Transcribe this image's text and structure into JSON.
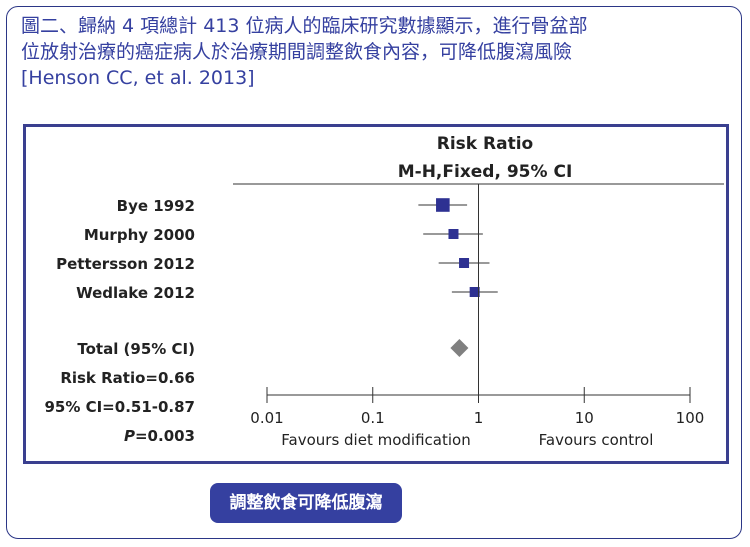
{
  "heading": {
    "line1": "圖二、歸納 4 項總計 413 位病人的臨床研究數據顯示，進行骨盆部",
    "line2": "位放射治療的癌症病人於治療期間調整飲食內容，可降低腹瀉風險",
    "citation": "[Henson CC, et al. 2013]"
  },
  "callout": {
    "text": "調整飲食可降低腹瀉"
  },
  "colors": {
    "accent": "#3540a0",
    "marker": "#2e3192",
    "diamond": "#808080"
  },
  "chart_data": {
    "type": "forest",
    "title": "Risk Ratio",
    "subtitle": "M-H,Fixed, 95% CI",
    "scale": "log",
    "xlim": [
      0.01,
      100
    ],
    "ticks": [
      {
        "value": 0.01,
        "label": "0.01"
      },
      {
        "value": 0.1,
        "label": "0.1"
      },
      {
        "value": 1,
        "label": "1"
      },
      {
        "value": 10,
        "label": "10"
      },
      {
        "value": 100,
        "label": "100"
      }
    ],
    "studies": [
      {
        "label": "Bye 1992",
        "rr": 0.46,
        "lo": 0.27,
        "hi": 0.78,
        "weight": 16
      },
      {
        "label": "Murphy 2000",
        "rr": 0.58,
        "lo": 0.3,
        "hi": 1.1,
        "weight": 10
      },
      {
        "label": "Pettersson 2012",
        "rr": 0.73,
        "lo": 0.42,
        "hi": 1.27,
        "weight": 10
      },
      {
        "label": "Wedlake 2012",
        "rr": 0.92,
        "lo": 0.56,
        "hi": 1.52,
        "weight": 10
      }
    ],
    "total": {
      "label": "Total (95% CI)",
      "rr": 0.66,
      "lo": 0.51,
      "hi": 0.87
    },
    "stats": [
      {
        "prefix": "",
        "text": "Risk Ratio=0.66"
      },
      {
        "prefix": "",
        "text": "95% CI=0.51-0.87"
      },
      {
        "prefix": "P",
        "text": "=0.003"
      }
    ],
    "favours_left": "Favours diet modification",
    "favours_right": "Favours control"
  }
}
